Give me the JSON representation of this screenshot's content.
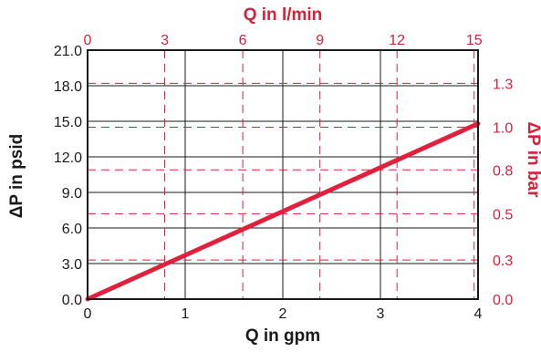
{
  "colors": {
    "primary_axis": "#1a1a1a",
    "secondary_axis": "#d8203b",
    "series_line": "#e0203c"
  },
  "chart_data": {
    "type": "line",
    "title": "",
    "grid": true,
    "xlabel": "Q in gpm",
    "ylabel": "ΔP in psid",
    "x2label": "Q in l/min",
    "y2label": "ΔP in bar",
    "xlim": [
      0,
      4
    ],
    "ylim": [
      0,
      21
    ],
    "x2lim": [
      0,
      15
    ],
    "x_ticks": [
      "0",
      "1",
      "2",
      "3",
      "4"
    ],
    "y_ticks": [
      "0.0",
      "3.0",
      "6.0",
      "9.0",
      "12.0",
      "15.0",
      "18.0",
      "21.0"
    ],
    "x2_ticks": [
      "0",
      "3",
      "6",
      "9",
      "12",
      "15"
    ],
    "y2_ticks": [
      {
        "label": "0.0",
        "value_psid": 0.0
      },
      {
        "label": "0.3",
        "value_psid": 3.3
      },
      {
        "label": "0.5",
        "value_psid": 7.2
      },
      {
        "label": "0.8",
        "value_psid": 10.9
      },
      {
        "label": "1.0",
        "value_psid": 14.5
      },
      {
        "label": "1.3",
        "value_psid": 18.2
      }
    ],
    "x2_gridlines_gpm": [
      0.79,
      1.59,
      2.38,
      3.17,
      3.96
    ],
    "series": [
      {
        "x": [
          0,
          4
        ],
        "y": [
          0,
          14.8
        ]
      }
    ]
  }
}
